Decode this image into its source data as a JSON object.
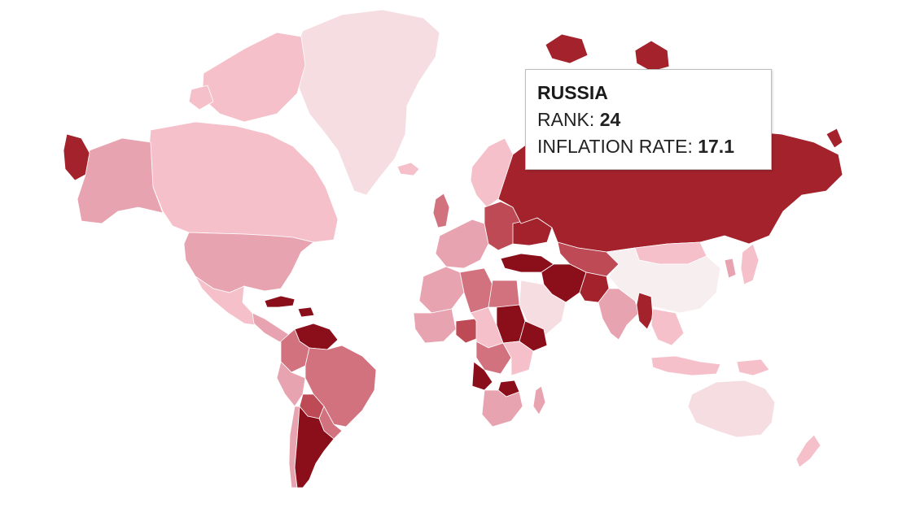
{
  "tooltip": {
    "country": "RUSSIA",
    "rank_label": "RANK: ",
    "rank_value": "24",
    "inflation_label": "INFLATION RATE: ",
    "inflation_value": "17.1"
  },
  "legend_colors": {
    "lowest": "#f5dde2",
    "low": "#f5c0ca",
    "mid_low": "#e8a3b0",
    "mid": "#d2727f",
    "high": "#bd4a55",
    "very_high": "#a3222c",
    "highest": "#8b0f1a",
    "no_data": "#f7eef0"
  },
  "regions": [
    {
      "name": "Greenland",
      "level": "lowest"
    },
    {
      "name": "Canada",
      "level": "low"
    },
    {
      "name": "Canadian Arctic Islands",
      "level": "low"
    },
    {
      "name": "Alaska",
      "level": "mid_low"
    },
    {
      "name": "United States",
      "level": "mid_low"
    },
    {
      "name": "Mexico",
      "level": "low"
    },
    {
      "name": "Central America",
      "level": "mid_low"
    },
    {
      "name": "Cuba",
      "level": "highest"
    },
    {
      "name": "Venezuela",
      "level": "highest"
    },
    {
      "name": "Colombia",
      "level": "mid"
    },
    {
      "name": "Brazil",
      "level": "mid"
    },
    {
      "name": "Peru",
      "level": "mid_low"
    },
    {
      "name": "Bolivia",
      "level": "high"
    },
    {
      "name": "Argentina",
      "level": "highest"
    },
    {
      "name": "Chile",
      "level": "mid_low"
    },
    {
      "name": "Paraguay Uruguay",
      "level": "mid"
    },
    {
      "name": "Iceland",
      "level": "low"
    },
    {
      "name": "United Kingdom",
      "level": "mid"
    },
    {
      "name": "Scandinavia",
      "level": "low"
    },
    {
      "name": "Western Europe",
      "level": "mid_low"
    },
    {
      "name": "Eastern Europe",
      "level": "high"
    },
    {
      "name": "Ukraine",
      "level": "very_high"
    },
    {
      "name": "Turkey",
      "level": "highest"
    },
    {
      "name": "Iran",
      "level": "highest"
    },
    {
      "name": "Pakistan",
      "level": "very_high"
    },
    {
      "name": "India",
      "level": "mid_low"
    },
    {
      "name": "Central Asia",
      "level": "high"
    },
    {
      "name": "Russia",
      "level": "very_high"
    },
    {
      "name": "Russian Arctic Islands",
      "level": "very_high"
    },
    {
      "name": "Mongolia",
      "level": "low"
    },
    {
      "name": "China",
      "level": "no_data"
    },
    {
      "name": "Myanmar",
      "level": "very_high"
    },
    {
      "name": "Southeast Asia",
      "level": "low"
    },
    {
      "name": "Japan",
      "level": "low"
    },
    {
      "name": "Korea",
      "level": "mid_low"
    },
    {
      "name": "Arabia",
      "level": "lowest"
    },
    {
      "name": "North Africa",
      "level": "mid_low"
    },
    {
      "name": "Algeria",
      "level": "mid"
    },
    {
      "name": "Egypt",
      "level": "mid"
    },
    {
      "name": "Sudan",
      "level": "highest"
    },
    {
      "name": "Ethiopia",
      "level": "highest"
    },
    {
      "name": "West Africa",
      "level": "mid_low"
    },
    {
      "name": "Nigeria",
      "level": "high"
    },
    {
      "name": "Central Africa",
      "level": "low"
    },
    {
      "name": "East Africa",
      "level": "low"
    },
    {
      "name": "DR Congo",
      "level": "mid"
    },
    {
      "name": "Angola",
      "level": "highest"
    },
    {
      "name": "Zimbabwe",
      "level": "highest"
    },
    {
      "name": "Southern Africa",
      "level": "mid_low"
    },
    {
      "name": "Madagascar",
      "level": "mid_low"
    },
    {
      "name": "Australia",
      "level": "lowest"
    },
    {
      "name": "New Zealand",
      "level": "low"
    },
    {
      "name": "Indonesia",
      "level": "low"
    },
    {
      "name": "Papua New Guinea",
      "level": "low"
    }
  ]
}
